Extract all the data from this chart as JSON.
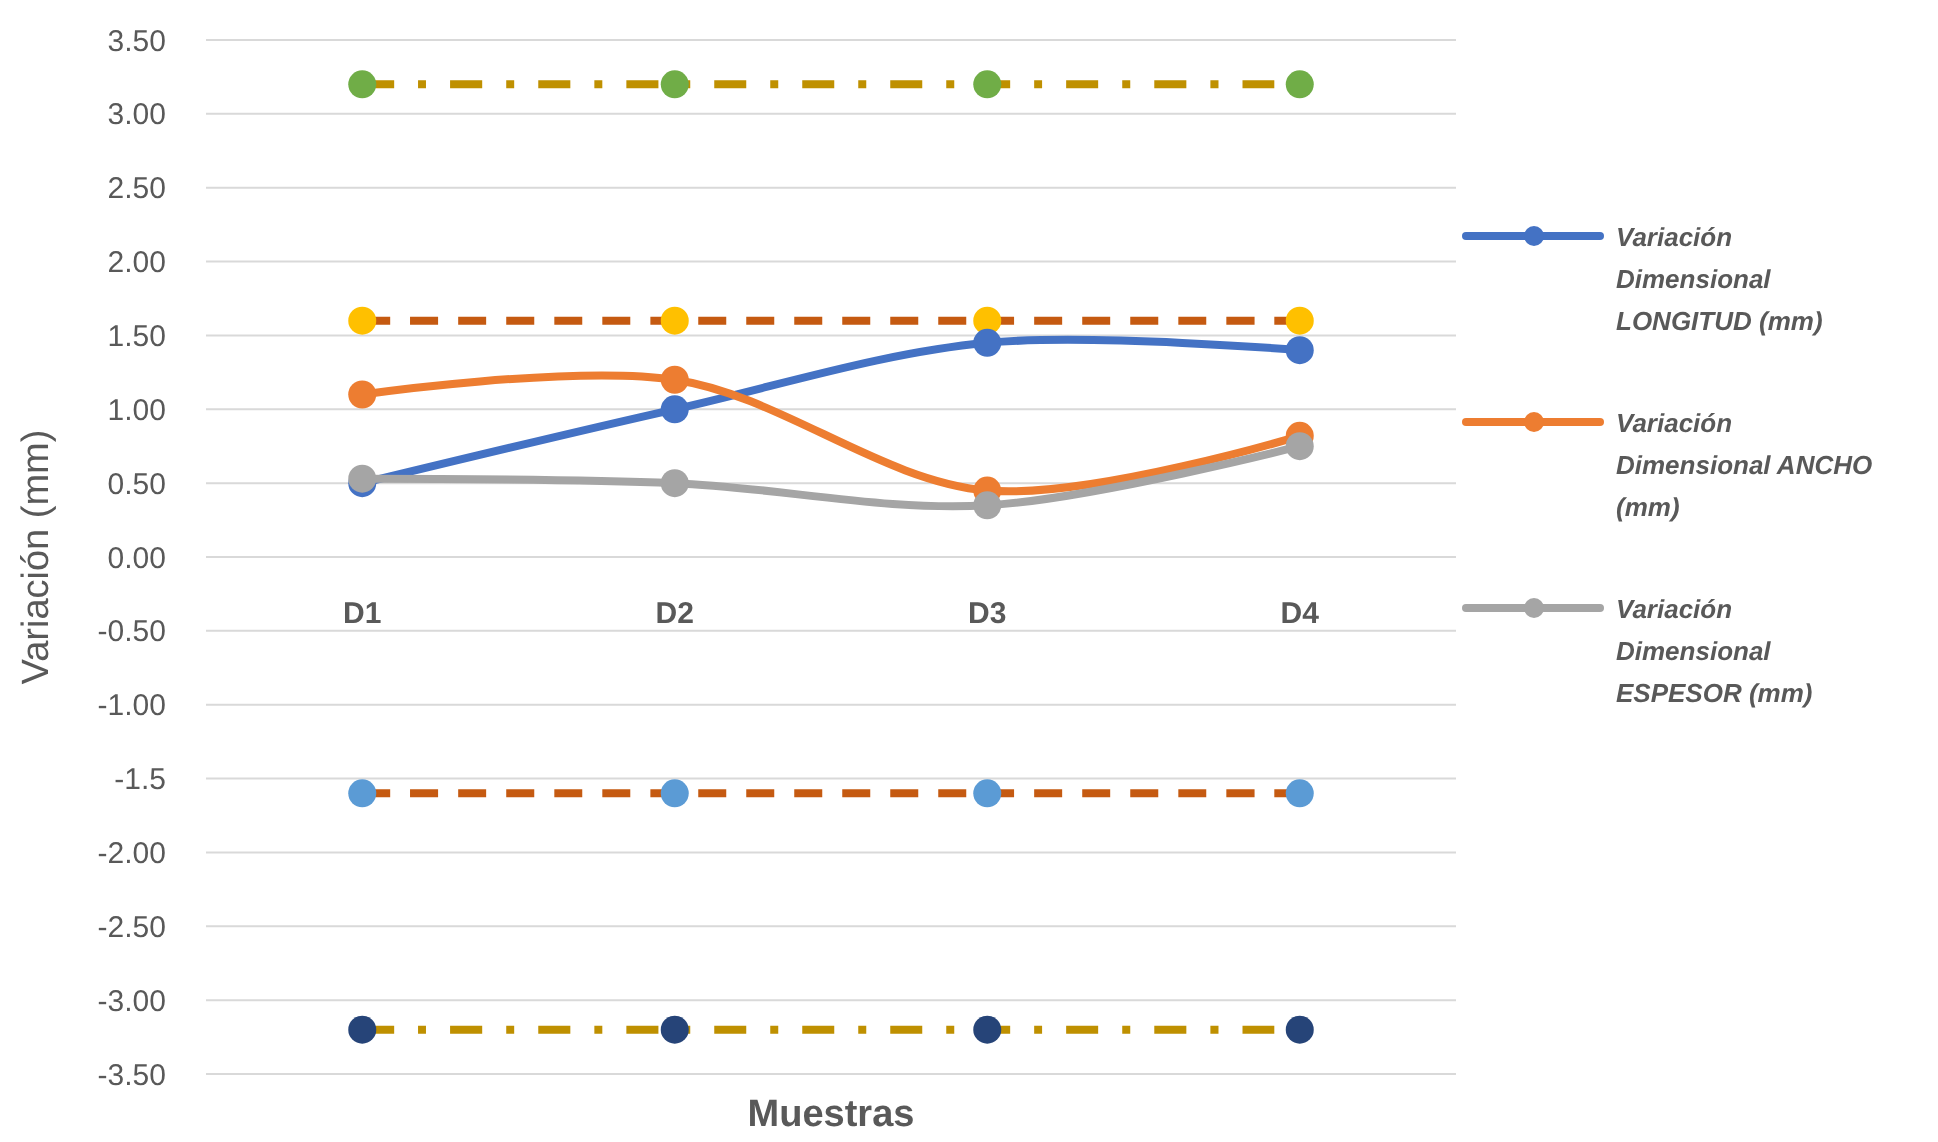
{
  "chart_data": {
    "type": "line",
    "xlabel": "Muestras",
    "ylabel": "Variación (mm)",
    "categories": [
      "D1",
      "D2",
      "D3",
      "D4"
    ],
    "ylim": [
      -3.5,
      3.5
    ],
    "yticks": [
      {
        "value": 3.5,
        "label": "3.50"
      },
      {
        "value": 3,
        "label": "3.00"
      },
      {
        "value": 2.5,
        "label": "2.50"
      },
      {
        "value": 2,
        "label": "2.00"
      },
      {
        "value": 1.5,
        "label": "1.50"
      },
      {
        "value": 1,
        "label": "1.00"
      },
      {
        "value": 0.5,
        "label": "0.50"
      },
      {
        "value": 0,
        "label": "0.00"
      },
      {
        "value": -0.5,
        "label": "-0.50"
      },
      {
        "value": -1,
        "label": "-1.00"
      },
      {
        "value": -1.5,
        "label": "-1.5"
      },
      {
        "value": -2,
        "label": "-2.00"
      },
      {
        "value": -2.5,
        "label": "-2.50"
      },
      {
        "value": -3,
        "label": "-3.00"
      },
      {
        "value": -3.5,
        "label": "-3.50"
      }
    ],
    "grid": "y",
    "legend": "right",
    "marker": "circle",
    "line_style": "solid",
    "series": [
      {
        "type": "line",
        "color": "#bf9000",
        "marker": "none",
        "line_style": "dotted",
        "values": [
          3.2,
          3.2,
          3.2,
          3.2
        ]
      },
      {
        "type": "line",
        "color": "#c55a11",
        "marker": "none",
        "line_style": "dashed",
        "values": [
          1.6,
          1.6,
          1.6,
          1.6
        ]
      },
      {
        "type": "line",
        "color": "#c55a11",
        "marker": "none",
        "line_style": "dashed",
        "values": [
          -1.6,
          -1.6,
          -1.6,
          -1.6
        ]
      },
      {
        "type": "line",
        "color": "#bf9000",
        "marker": "none",
        "line_style": "dotted",
        "values": [
          -3.2,
          -3.2,
          -3.2,
          -3.2
        ]
      },
      {
        "type": "scatter",
        "color": "#70ad47",
        "values": [
          3.2,
          3.2,
          3.2,
          3.2
        ]
      },
      {
        "type": "scatter",
        "color": "#ffc000",
        "values": [
          1.6,
          1.6,
          1.6,
          1.6
        ]
      },
      {
        "type": "scatter",
        "color": "#5b9bd5",
        "values": [
          -1.6,
          -1.6,
          -1.6,
          -1.6
        ]
      },
      {
        "type": "scatter",
        "color": "#264478",
        "values": [
          -3.2,
          -3.2,
          -3.2,
          -3.2
        ]
      },
      {
        "name": "Variación Dimensional LONGITUD (mm)",
        "color": "#4472c4",
        "values": [
          0.5,
          1.0,
          1.45,
          1.4
        ]
      },
      {
        "name": "Variación Dimensional ANCHO (mm)",
        "color": "#ed7d31",
        "values": [
          1.1,
          1.2,
          0.45,
          0.82
        ]
      },
      {
        "name": "Variación Dimensional ESPESOR (mm)",
        "color": "#a5a5a5",
        "values": [
          0.53,
          0.5,
          0.35,
          0.75
        ]
      }
    ]
  }
}
